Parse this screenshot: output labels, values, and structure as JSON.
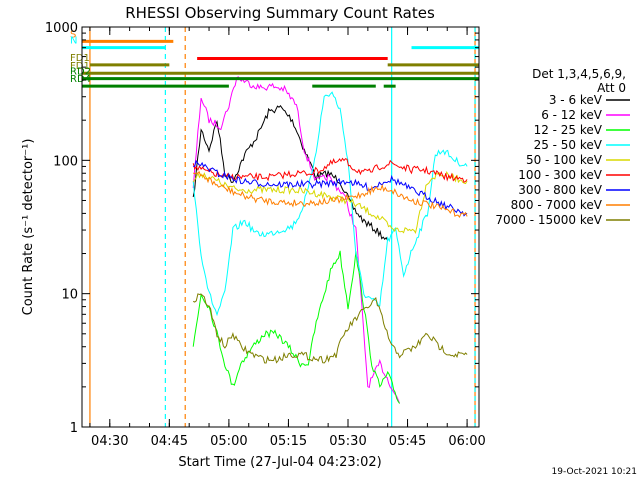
{
  "chart_data": {
    "type": "line",
    "title": "RHESSI Observing Summary Count Rates",
    "xlabel": "Start Time (27-Jul-04 04:23:02)",
    "ylabel": "Count Rate (s⁻¹ detector⁻¹)",
    "yscale": "log",
    "ylim": [
      1,
      1000
    ],
    "xlim": [
      "04:23",
      "06:03"
    ],
    "x_ticks": [
      "04:30",
      "04:45",
      "05:00",
      "05:15",
      "05:30",
      "05:45",
      "06:00"
    ],
    "y_ticks": [
      "1",
      "10",
      "100",
      "1000"
    ],
    "grid": false,
    "legend_position": "right",
    "legend_header": [
      "Det 1,3,4,5,6,9,",
      "Att 0"
    ],
    "timestamp": "19-Oct-2021 10:21",
    "series": [
      {
        "name": "3 - 6 keV",
        "color": "#000000",
        "points": [
          [
            "04:51",
            50
          ],
          [
            "04:53",
            170
          ],
          [
            "04:55",
            120
          ],
          [
            "04:57",
            200
          ],
          [
            "04:59",
            80
          ],
          [
            "05:01",
            70
          ],
          [
            "05:04",
            110
          ],
          [
            "05:07",
            150
          ],
          [
            "05:10",
            230
          ],
          [
            "05:13",
            250
          ],
          [
            "05:16",
            200
          ],
          [
            "05:19",
            120
          ],
          [
            "05:22",
            75
          ],
          [
            "05:25",
            80
          ],
          [
            "05:28",
            70
          ],
          [
            "05:31",
            45
          ],
          [
            "05:34",
            35
          ],
          [
            "05:37",
            30
          ],
          [
            "05:40",
            25
          ]
        ]
      },
      {
        "name": "6 - 12 keV",
        "color": "#ff00ff",
        "points": [
          [
            "04:51",
            60
          ],
          [
            "04:53",
            300
          ],
          [
            "04:55",
            200
          ],
          [
            "04:58",
            180
          ],
          [
            "05:00",
            260
          ],
          [
            "05:02",
            420
          ],
          [
            "05:05",
            380
          ],
          [
            "05:08",
            350
          ],
          [
            "05:11",
            360
          ],
          [
            "05:14",
            340
          ],
          [
            "05:17",
            260
          ],
          [
            "05:19",
            120
          ],
          [
            "05:22",
            70
          ],
          [
            "05:25",
            75
          ],
          [
            "05:29",
            55
          ],
          [
            "05:32",
            30
          ],
          [
            "05:35",
            2
          ],
          [
            "05:38",
            3
          ],
          [
            "05:41",
            2
          ],
          [
            "05:43",
            1.5
          ]
        ]
      },
      {
        "name": "12 - 25 keV",
        "color": "#00ff00",
        "points": [
          [
            "04:51",
            4
          ],
          [
            "04:53",
            10
          ],
          [
            "04:55",
            8
          ],
          [
            "04:57",
            5
          ],
          [
            "04:59",
            3
          ],
          [
            "05:01",
            2
          ],
          [
            "05:03",
            3
          ],
          [
            "05:06",
            4
          ],
          [
            "05:09",
            5
          ],
          [
            "05:12",
            5
          ],
          [
            "05:15",
            4
          ],
          [
            "05:18",
            3
          ],
          [
            "05:20",
            3
          ],
          [
            "05:22",
            6
          ],
          [
            "05:24",
            10
          ],
          [
            "05:26",
            16
          ],
          [
            "05:28",
            20
          ],
          [
            "05:30",
            8
          ],
          [
            "05:32",
            20
          ],
          [
            "05:34",
            8
          ],
          [
            "05:36",
            3
          ],
          [
            "05:38",
            2
          ],
          [
            "05:40",
            2.5
          ],
          [
            "05:43",
            1.5
          ]
        ]
      },
      {
        "name": "25 - 50 keV",
        "color": "#00ffff",
        "points": [
          [
            "04:51",
            70
          ],
          [
            "04:53",
            20
          ],
          [
            "04:55",
            10
          ],
          [
            "04:57",
            7
          ],
          [
            "04:59",
            10
          ],
          [
            "05:01",
            30
          ],
          [
            "05:04",
            35
          ],
          [
            "05:07",
            28
          ],
          [
            "05:10",
            28
          ],
          [
            "05:13",
            30
          ],
          [
            "05:16",
            32
          ],
          [
            "05:18",
            40
          ],
          [
            "05:20",
            60
          ],
          [
            "05:22",
            120
          ],
          [
            "05:24",
            300
          ],
          [
            "05:26",
            320
          ],
          [
            "05:28",
            240
          ],
          [
            "05:30",
            100
          ],
          [
            "05:32",
            20
          ],
          [
            "05:34",
            10
          ],
          [
            "05:36",
            9
          ],
          [
            "05:38",
            8
          ],
          [
            "05:40",
            25
          ],
          [
            "05:42",
            30
          ],
          [
            "05:44",
            14
          ],
          [
            "05:47",
            25
          ],
          [
            "05:50",
            40
          ],
          [
            "05:52",
            110
          ],
          [
            "05:54",
            120
          ],
          [
            "05:57",
            100
          ],
          [
            "06:00",
            90
          ]
        ]
      },
      {
        "name": "50 - 100 keV",
        "color": "#d8d800",
        "points": [
          [
            "04:51",
            70
          ],
          [
            "04:53",
            80
          ],
          [
            "04:55",
            75
          ],
          [
            "04:57",
            70
          ],
          [
            "04:59",
            65
          ],
          [
            "05:02",
            60
          ],
          [
            "05:05",
            60
          ],
          [
            "05:08",
            60
          ],
          [
            "05:12",
            60
          ],
          [
            "05:16",
            60
          ],
          [
            "05:20",
            58
          ],
          [
            "05:24",
            55
          ],
          [
            "05:27",
            52
          ],
          [
            "05:30",
            50
          ],
          [
            "05:33",
            45
          ],
          [
            "05:36",
            40
          ],
          [
            "05:39",
            35
          ],
          [
            "05:41",
            30
          ],
          [
            "05:44",
            30
          ],
          [
            "05:47",
            30
          ],
          [
            "05:50",
            70
          ],
          [
            "05:53",
            80
          ],
          [
            "05:56",
            75
          ],
          [
            "06:00",
            70
          ]
        ]
      },
      {
        "name": "100 - 300 keV",
        "color": "#ff0000",
        "points": [
          [
            "04:51",
            90
          ],
          [
            "04:53",
            85
          ],
          [
            "04:56",
            80
          ],
          [
            "04:59",
            75
          ],
          [
            "05:02",
            75
          ],
          [
            "05:05",
            75
          ],
          [
            "05:08",
            75
          ],
          [
            "05:11",
            75
          ],
          [
            "05:14",
            78
          ],
          [
            "05:17",
            80
          ],
          [
            "05:20",
            80
          ],
          [
            "05:23",
            85
          ],
          [
            "05:26",
            95
          ],
          [
            "05:29",
            100
          ],
          [
            "05:32",
            85
          ],
          [
            "05:35",
            80
          ],
          [
            "05:38",
            90
          ],
          [
            "05:41",
            95
          ],
          [
            "05:43",
            90
          ],
          [
            "05:46",
            85
          ],
          [
            "05:49",
            85
          ],
          [
            "05:52",
            80
          ],
          [
            "05:55",
            75
          ],
          [
            "06:00",
            72
          ]
        ]
      },
      {
        "name": "300 - 800 keV",
        "color": "#0000ff",
        "points": [
          [
            "04:51",
            95
          ],
          [
            "04:54",
            90
          ],
          [
            "04:57",
            80
          ],
          [
            "05:00",
            75
          ],
          [
            "05:03",
            70
          ],
          [
            "05:06",
            68
          ],
          [
            "05:09",
            67
          ],
          [
            "05:12",
            66
          ],
          [
            "05:15",
            66
          ],
          [
            "05:18",
            66
          ],
          [
            "05:21",
            66
          ],
          [
            "05:24",
            67
          ],
          [
            "05:27",
            68
          ],
          [
            "05:30",
            70
          ],
          [
            "05:33",
            65
          ],
          [
            "05:36",
            62
          ],
          [
            "05:39",
            70
          ],
          [
            "05:41",
            72
          ],
          [
            "05:43",
            68
          ],
          [
            "05:46",
            60
          ],
          [
            "05:49",
            55
          ],
          [
            "05:52",
            50
          ],
          [
            "05:55",
            45
          ],
          [
            "06:00",
            40
          ]
        ]
      },
      {
        "name": "800 - 7000 keV",
        "color": "#ff7f00",
        "points": [
          [
            "04:51",
            80
          ],
          [
            "04:54",
            75
          ],
          [
            "04:57",
            65
          ],
          [
            "05:00",
            60
          ],
          [
            "05:03",
            55
          ],
          [
            "05:06",
            52
          ],
          [
            "05:09",
            50
          ],
          [
            "05:12",
            49
          ],
          [
            "05:15",
            48
          ],
          [
            "05:18",
            48
          ],
          [
            "05:21",
            48
          ],
          [
            "05:24",
            49
          ],
          [
            "05:27",
            50
          ],
          [
            "05:30",
            52
          ],
          [
            "05:33",
            55
          ],
          [
            "05:36",
            60
          ],
          [
            "05:39",
            62
          ],
          [
            "05:41",
            60
          ],
          [
            "05:43",
            55
          ],
          [
            "05:46",
            50
          ],
          [
            "05:49",
            48
          ],
          [
            "05:52",
            45
          ],
          [
            "05:55",
            42
          ],
          [
            "06:00",
            38
          ]
        ]
      },
      {
        "name": "7000 - 15000 keV",
        "color": "#7f7f00",
        "points": [
          [
            "04:51",
            9
          ],
          [
            "04:53",
            10
          ],
          [
            "04:55",
            8
          ],
          [
            "04:57",
            5
          ],
          [
            "04:59",
            4
          ],
          [
            "05:01",
            5
          ],
          [
            "05:03",
            4
          ],
          [
            "05:06",
            3.5
          ],
          [
            "05:09",
            3.2
          ],
          [
            "05:12",
            3.2
          ],
          [
            "05:15",
            3.5
          ],
          [
            "05:18",
            3.5
          ],
          [
            "05:21",
            3.3
          ],
          [
            "05:24",
            3.2
          ],
          [
            "05:27",
            3.5
          ],
          [
            "05:29",
            5
          ],
          [
            "05:31",
            6
          ],
          [
            "05:33",
            7
          ],
          [
            "05:35",
            8
          ],
          [
            "05:37",
            9
          ],
          [
            "05:39",
            6
          ],
          [
            "05:41",
            4
          ],
          [
            "05:43",
            3.5
          ],
          [
            "05:47",
            4
          ],
          [
            "05:50",
            5
          ],
          [
            "05:53",
            4
          ],
          [
            "05:56",
            3.5
          ],
          [
            "06:00",
            3.5
          ]
        ]
      }
    ],
    "flag_bars": [
      {
        "label": "S",
        "color": "#ff7f00",
        "y": 780,
        "segments": [
          [
            "04:22",
            "04:46"
          ]
        ]
      },
      {
        "label": "N",
        "color": "#00ffff",
        "y": 700,
        "segments": [
          [
            "04:22",
            "04:44"
          ],
          [
            "05:46",
            "06:03"
          ]
        ]
      },
      {
        "label": "",
        "color": "#ff0000",
        "y": 580,
        "segments": [
          [
            "04:52",
            "05:40"
          ]
        ]
      },
      {
        "label": "FD1",
        "color": "#7f7f00",
        "y": 520,
        "segments": [
          [
            "04:25",
            "04:45"
          ],
          [
            "05:40",
            "06:03"
          ]
        ]
      },
      {
        "label": "FD1",
        "color": "#7f7f00",
        "y": 450,
        "segments": [
          [
            "04:22",
            "06:03"
          ]
        ]
      },
      {
        "label": "RD2",
        "color": "#008000",
        "y": 410,
        "segments": [
          [
            "04:22",
            "06:03"
          ]
        ]
      },
      {
        "label": "RD4",
        "color": "#008000",
        "y": 360,
        "segments": [
          [
            "04:22",
            "05:00"
          ],
          [
            "05:21",
            "05:37"
          ],
          [
            "05:39",
            "05:42"
          ]
        ]
      }
    ],
    "vlines": [
      {
        "time": "04:25",
        "color": "#ff7f00",
        "style": "solid"
      },
      {
        "time": "04:44",
        "color": "#00ffff",
        "style": "dashed"
      },
      {
        "time": "04:49",
        "color": "#ff7f00",
        "style": "dashed"
      },
      {
        "time": "05:41",
        "color": "#00ffff",
        "style": "solid"
      },
      {
        "time": "06:02",
        "color": "#ff7f00",
        "style": "solid"
      },
      {
        "time": "06:02",
        "color": "#00ffff",
        "style": "dashed"
      }
    ]
  }
}
